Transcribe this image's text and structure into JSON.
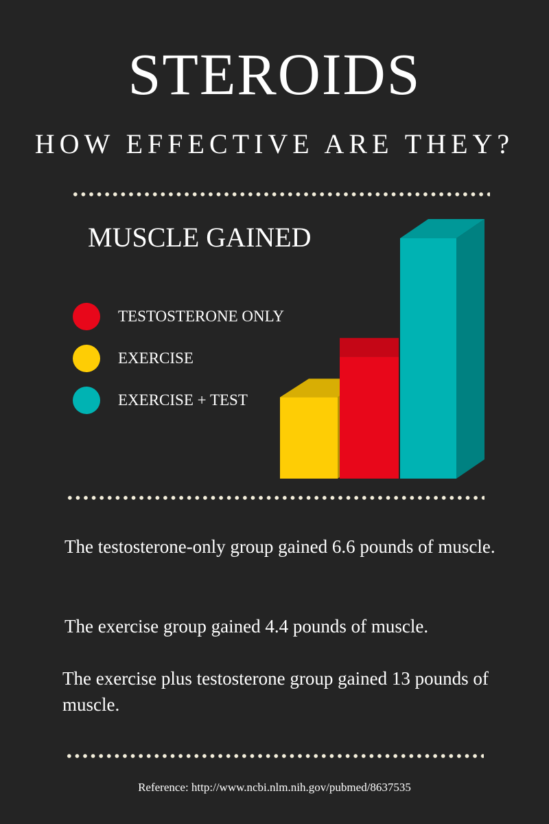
{
  "header": {
    "title": "STEROIDS",
    "subtitle": "HOW EFFECTIVE ARE THEY?"
  },
  "chart_data": {
    "type": "bar",
    "title": "MUSCLE GAINED",
    "categories": [
      "EXERCISE",
      "TESTOSTERONE ONLY",
      "EXERCISE + TEST"
    ],
    "values": [
      4.4,
      6.6,
      13
    ],
    "units": "pounds",
    "colors": [
      "#fecd05",
      "#e8071a",
      "#00b3b3"
    ],
    "ylim": [
      0,
      13
    ],
    "grid": false,
    "legend_position": "left",
    "legend": [
      {
        "label": "TESTOSTERONE ONLY",
        "color": "#e8071a"
      },
      {
        "label": "EXERCISE",
        "color": "#fecd05"
      },
      {
        "label": "EXERCISE + TEST",
        "color": "#00b3b3"
      }
    ]
  },
  "descriptions": [
    "The testosterone-only group gained 6.6 pounds of muscle.",
    "The exercise group gained 4.4 pounds of muscle.",
    "The exercise plus testosterone group gained 13 pounds of muscle."
  ],
  "reference": "Reference: http://www.ncbi.nlm.nih.gov/pubmed/8637535",
  "colors": {
    "background": "#242424",
    "text": "#ffffff",
    "dots": "#f4efdc"
  }
}
